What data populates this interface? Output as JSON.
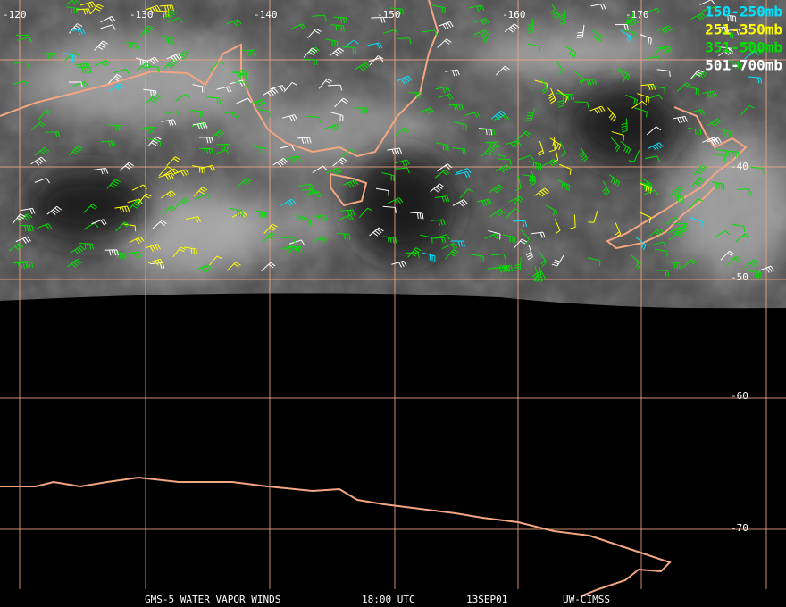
{
  "map": {
    "lon_labels": [
      "-120",
      "-130",
      "-140",
      "-150",
      "-160",
      "-170"
    ],
    "lat_labels": [
      "-40",
      "-50",
      "-60",
      "-70"
    ],
    "legend": [
      {
        "label": "150-250mb",
        "color": "#00e5ff"
      },
      {
        "label": "251-350mb",
        "color": "#ffff00"
      },
      {
        "label": "351-500mb",
        "color": "#00e000"
      },
      {
        "label": "501-700mb",
        "color": "#ffffff"
      }
    ],
    "footer": [
      "GMS-5 WATER VAPOR WINDS",
      "18:00 UTC",
      "13SEP01",
      "UW-CIMSS"
    ]
  }
}
